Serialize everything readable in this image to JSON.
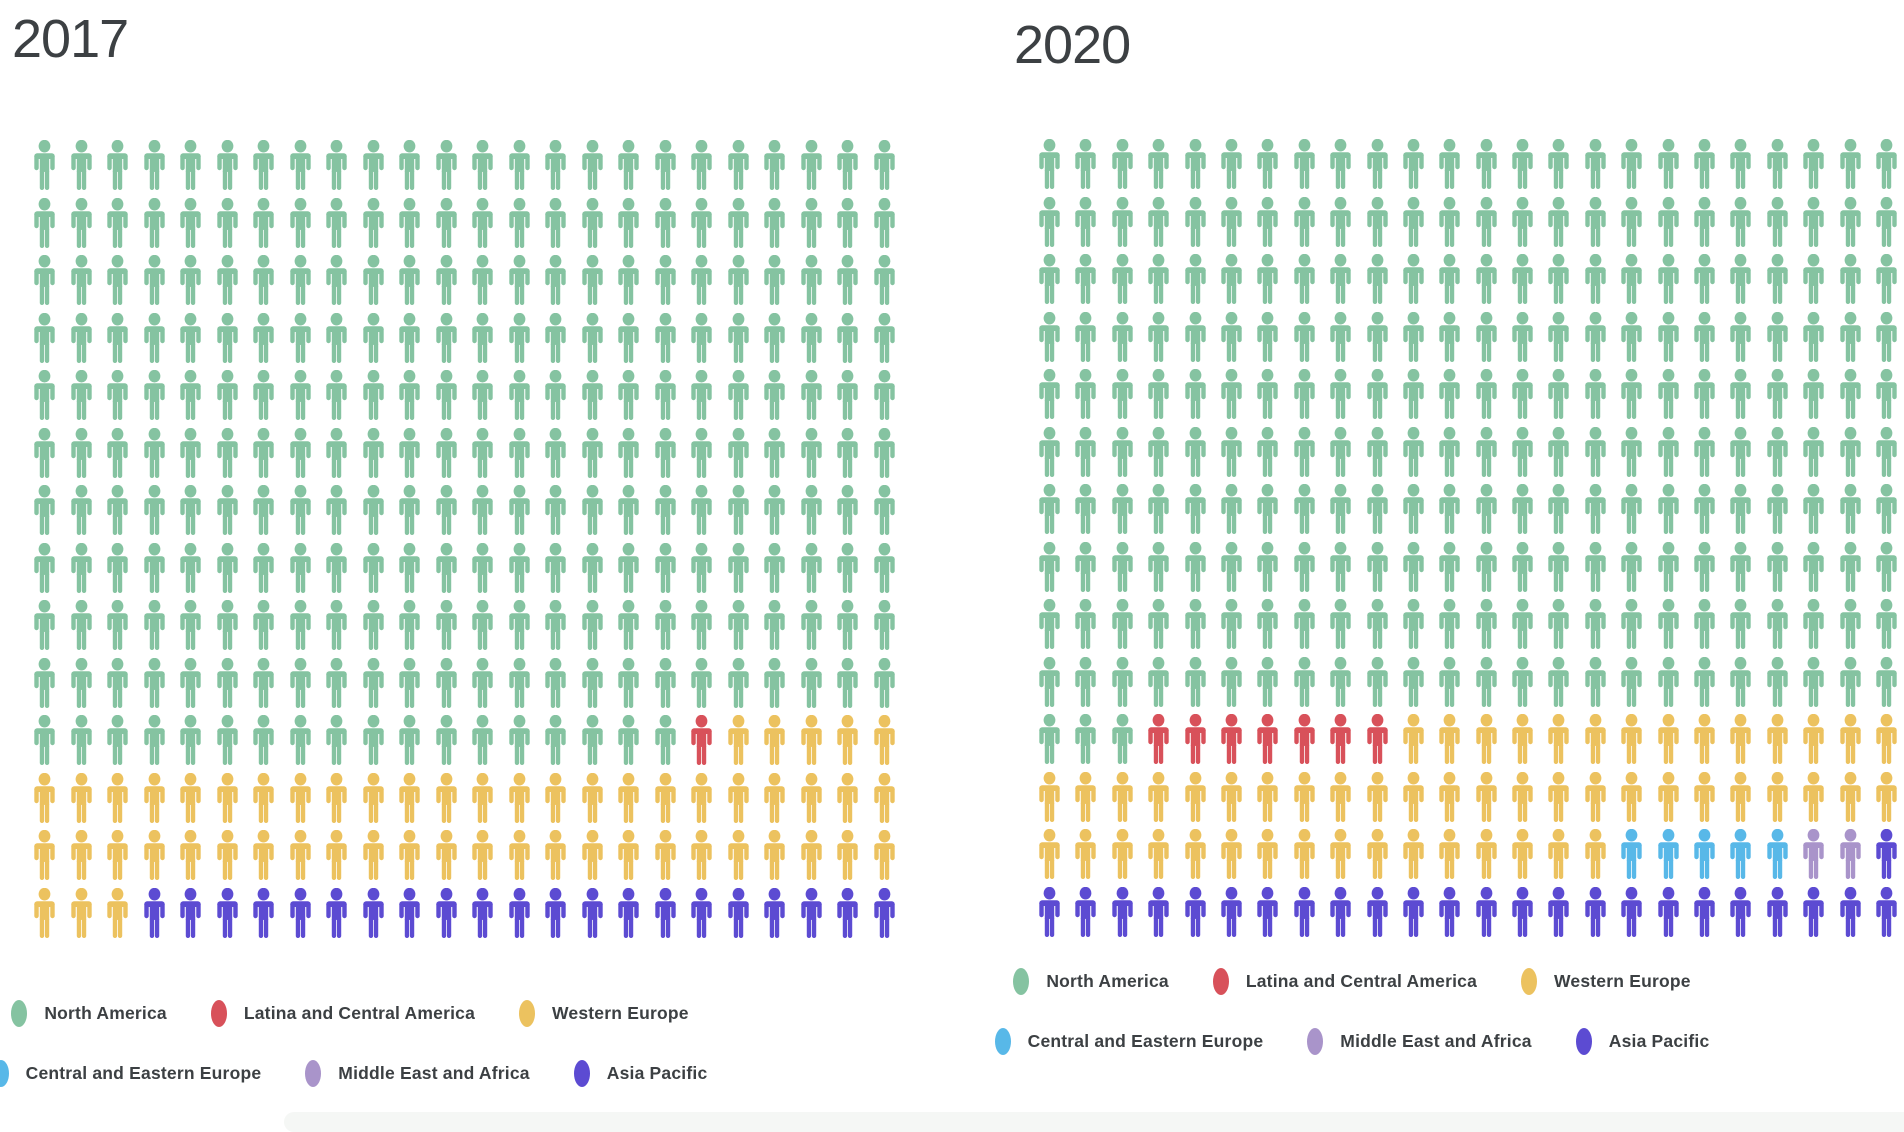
{
  "regions": [
    {
      "label": "North America",
      "color": "#85c3a1"
    },
    {
      "label": "Latina and Central America",
      "color": "#d8515a"
    },
    {
      "label": "Western Europe",
      "color": "#ecc25f"
    },
    {
      "label": "Central and Eastern Europe",
      "color": "#58b8e8"
    },
    {
      "label": "Middle East and Africa",
      "color": "#a994ca"
    },
    {
      "label": "Asia Pacific",
      "color": "#5c4bd2"
    }
  ],
  "legend_rows": [
    [
      0,
      1,
      2
    ],
    [
      3,
      4,
      5
    ]
  ],
  "chart_data": [
    {
      "type": "pictogram",
      "title": "2017",
      "grid": {
        "columns": 24,
        "rows": 14
      },
      "total_icons": 336,
      "legend_position": "bottom",
      "icon_counts": {
        "North America": 258,
        "Latina and Central America": 1,
        "Western Europe": 56,
        "Central and Eastern Europe": 0,
        "Middle East and Africa": 0,
        "Asia Pacific": 21
      },
      "runs_row_major": [
        {
          "region": "North America",
          "count": 258
        },
        {
          "region": "Latina and Central America",
          "count": 1
        },
        {
          "region": "Western Europe",
          "count": 56
        },
        {
          "region": "Asia Pacific",
          "count": 21
        }
      ]
    },
    {
      "type": "pictogram",
      "title": "2020",
      "grid": {
        "columns": 24,
        "rows": 14
      },
      "total_icons": 336,
      "legend_position": "bottom",
      "icon_counts": {
        "North America": 243,
        "Latina and Central America": 7,
        "Western Europe": 54,
        "Central and Eastern Europe": 5,
        "Middle East and Africa": 2,
        "Asia Pacific": 25
      },
      "runs_row_major": [
        {
          "region": "North America",
          "count": 243
        },
        {
          "region": "Latina and Central America",
          "count": 7
        },
        {
          "region": "Western Europe",
          "count": 54
        },
        {
          "region": "Central and Eastern Europe",
          "count": 5
        },
        {
          "region": "Middle East and Africa",
          "count": 2
        },
        {
          "region": "Asia Pacific",
          "count": 25
        }
      ]
    }
  ]
}
